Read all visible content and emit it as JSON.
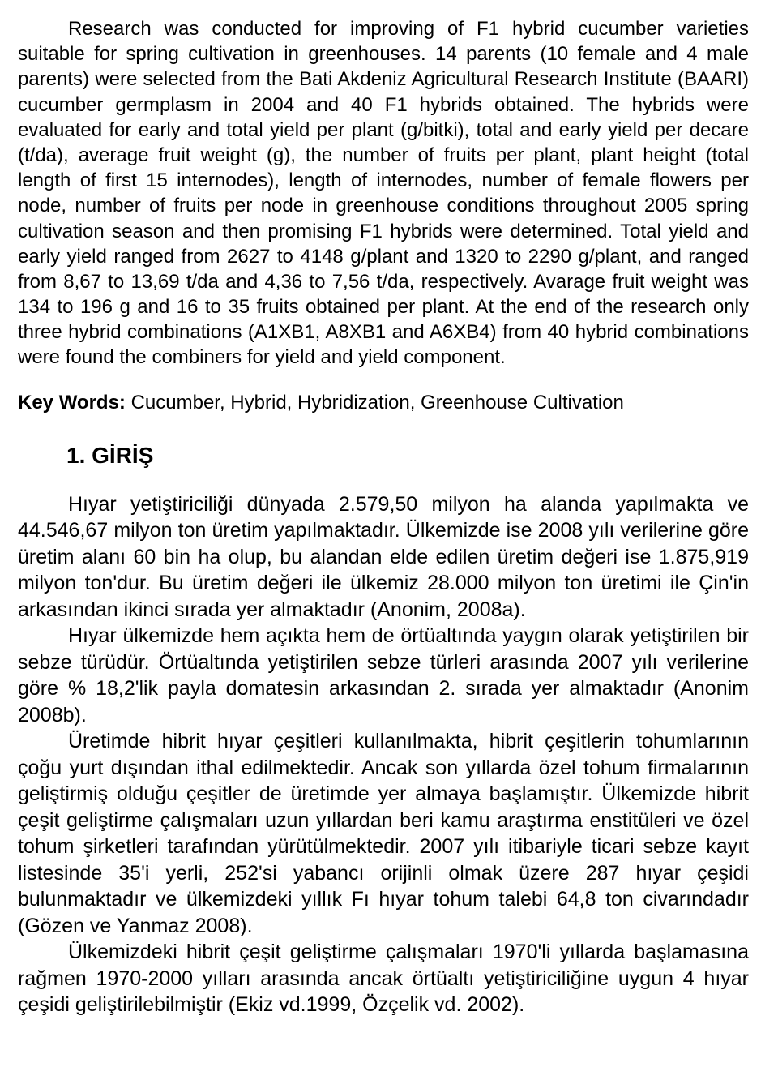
{
  "abstract": {
    "indent": " ",
    "text": "Research was conducted for improving of F1 hybrid cucumber varieties suitable for spring cultivation in greenhouses. 14 parents (10 female and 4 male parents) were selected from the Bati Akdeniz Agricultural Research Institute (BAARI) cucumber germplasm in 2004 and 40 F1 hybrids obtained. The hybrids were evaluated for early and total yield per plant (g/bitki), total and early yield per decare (t/da), average fruit weight (g), the number of fruits per plant, plant height (total length of first 15 internodes), length of internodes, number of female flowers per node, number of fruits per node in greenhouse conditions throughout 2005 spring cultivation season and then promising F1 hybrids were determined. Total yield and early yield ranged from 2627 to 4148 g/plant and 1320 to 2290 g/plant, and ranged from 8,67 to 13,69 t/da and 4,36 to 7,56 t/da, respectively. Avarage fruit weight was 134 to 196 g and 16 to 35 fruits obtained per plant. At the end of the research only three hybrid combinations (A1XB1, A8XB1 and A6XB4) from 40 hybrid combinations were found the combiners for yield and yield component."
  },
  "keywords": {
    "label": "Key Words:",
    "text": " Cucumber, Hybrid, Hybridization, Greenhouse Cultivation"
  },
  "heading": "1. GİRİŞ",
  "paragraphs": [
    "Hıyar yetiştiriciliği dünyada 2.579,50 milyon ha alanda yapılmakta ve 44.546,67 milyon ton üretim yapılmaktadır. Ülkemizde ise 2008 yılı verilerine göre üretim alanı 60 bin ha olup, bu alandan elde edilen üretim değeri ise 1.875,919 milyon ton'dur. Bu üretim değeri ile ülkemiz 28.000 milyon ton üretimi ile Çin'in arkasından ikinci sırada yer almaktadır (Anonim, 2008a).",
    "Hıyar ülkemizde hem açıkta hem de örtüaltında yaygın olarak yetiştirilen bir sebze türüdür. Örtüaltında yetiştirilen sebze türleri arasında 2007 yılı verilerine göre % 18,2'lik payla domatesin arkasından 2. sırada yer almaktadır (Anonim 2008b).",
    "Üretimde hibrit hıyar çeşitleri kullanılmakta, hibrit çeşitlerin tohumlarının çoğu yurt dışından ithal edilmektedir. Ancak son yıllarda özel tohum firmalarının geliştirmiş olduğu çeşitler de üretimde yer almaya başlamıştır. Ülkemizde hibrit çeşit geliştirme çalışmaları uzun yıllardan beri kamu araştırma enstitüleri ve özel tohum şirketleri tarafından yürütülmektedir. 2007 yılı itibariyle ticari sebze kayıt listesinde 35'i yerli, 252'si yabancı orijinli olmak üzere 287 hıyar çeşidi bulunmaktadır ve ülkemizdeki yıllık Fı hıyar tohum talebi 64,8 ton civarındadır (Gözen ve Yanmaz 2008).",
    "Ülkemizdeki hibrit çeşit geliştirme çalışmaları 1970'li yıllarda başlamasına rağmen 1970-2000 yılları arasında ancak örtüaltı yetiştiriciliğine uygun 4 hıyar çeşidi geliştirilebilmiştir (Ekiz vd.1999, Özçelik vd. 2002)."
  ],
  "colors": {
    "text": "#000000",
    "background": "#ffffff"
  },
  "fontsizes": {
    "abstract": 24,
    "keywords": 24,
    "heading": 28,
    "body": 25
  }
}
